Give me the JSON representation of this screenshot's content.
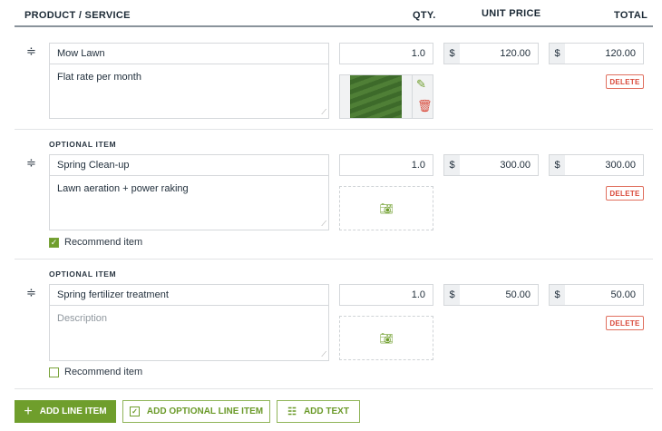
{
  "header": {
    "product": "PRODUCT / SERVICE",
    "qty": "QTY.",
    "unit_price": "UNIT PRICE",
    "total": "TOTAL"
  },
  "items": [
    {
      "optional_label": "",
      "name": "Mow Lawn",
      "description": "Flat rate per month",
      "description_placeholder": "Description",
      "qty": "1.0",
      "currency": "$",
      "unit_price": "120.00",
      "total": "120.00",
      "delete": "DELETE",
      "has_image": true
    },
    {
      "optional_label": "OPTIONAL ITEM",
      "name": "Spring Clean-up",
      "description": "Lawn aeration + power raking",
      "description_placeholder": "Description",
      "qty": "1.0",
      "currency": "$",
      "unit_price": "300.00",
      "total": "300.00",
      "delete": "DELETE",
      "recommend": "Recommend item",
      "recommended": true
    },
    {
      "optional_label": "OPTIONAL ITEM",
      "name": "Spring fertilizer treatment",
      "description": "",
      "description_placeholder": "Description",
      "qty": "1.0",
      "currency": "$",
      "unit_price": "50.00",
      "total": "50.00",
      "delete": "DELETE",
      "recommend": "Recommend item",
      "recommended": false
    }
  ],
  "buttons": {
    "add_line": "ADD LINE ITEM",
    "add_optional": "ADD OPTIONAL LINE ITEM",
    "add_text": "ADD TEXT"
  },
  "colors": {
    "accent": "#6f9e2c",
    "danger": "#d9493a"
  }
}
